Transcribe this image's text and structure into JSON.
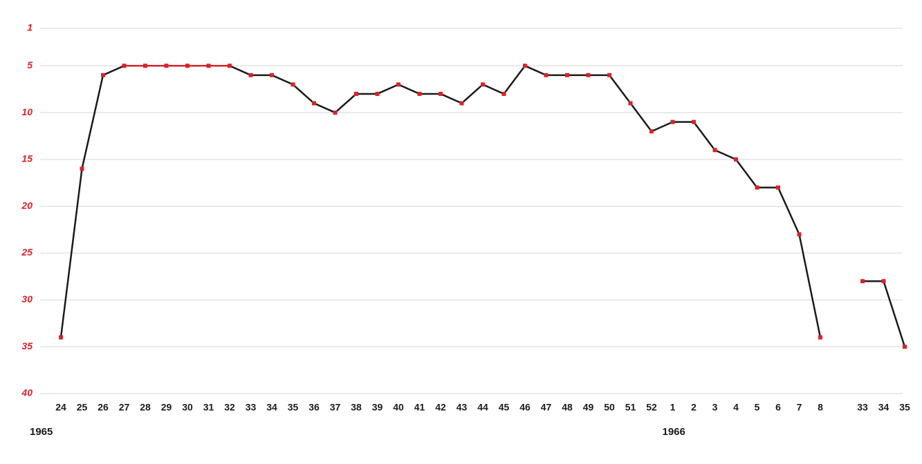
{
  "chart_data": {
    "type": "line",
    "categories": [
      "24",
      "25",
      "26",
      "27",
      "28",
      "29",
      "30",
      "31",
      "32",
      "33",
      "34",
      "35",
      "36",
      "37",
      "38",
      "39",
      "40",
      "41",
      "42",
      "43",
      "44",
      "45",
      "46",
      "47",
      "48",
      "49",
      "50",
      "51",
      "52",
      "1",
      "2",
      "3",
      "4",
      "5",
      "6",
      "7",
      "8",
      null,
      "33",
      "34",
      "35"
    ],
    "values": [
      34,
      16,
      6,
      5,
      5,
      5,
      5,
      5,
      5,
      6,
      6,
      7,
      9,
      10,
      8,
      8,
      7,
      8,
      8,
      9,
      7,
      8,
      5,
      6,
      6,
      6,
      6,
      9,
      12,
      11,
      11,
      14,
      15,
      18,
      18,
      23,
      34,
      null,
      28,
      28,
      35
    ],
    "color": "#1a1a1a",
    "marker_color": "#d8232a",
    "peak_color": "#d8232a",
    "ylim": [
      1,
      40
    ],
    "y_inverted": true,
    "yticks": [
      1,
      5,
      10,
      15,
      20,
      25,
      30,
      35,
      40
    ],
    "grid": true,
    "year_labels": [
      {
        "label": "1965",
        "at": "24"
      },
      {
        "label": "1966",
        "at": "1"
      }
    ]
  }
}
